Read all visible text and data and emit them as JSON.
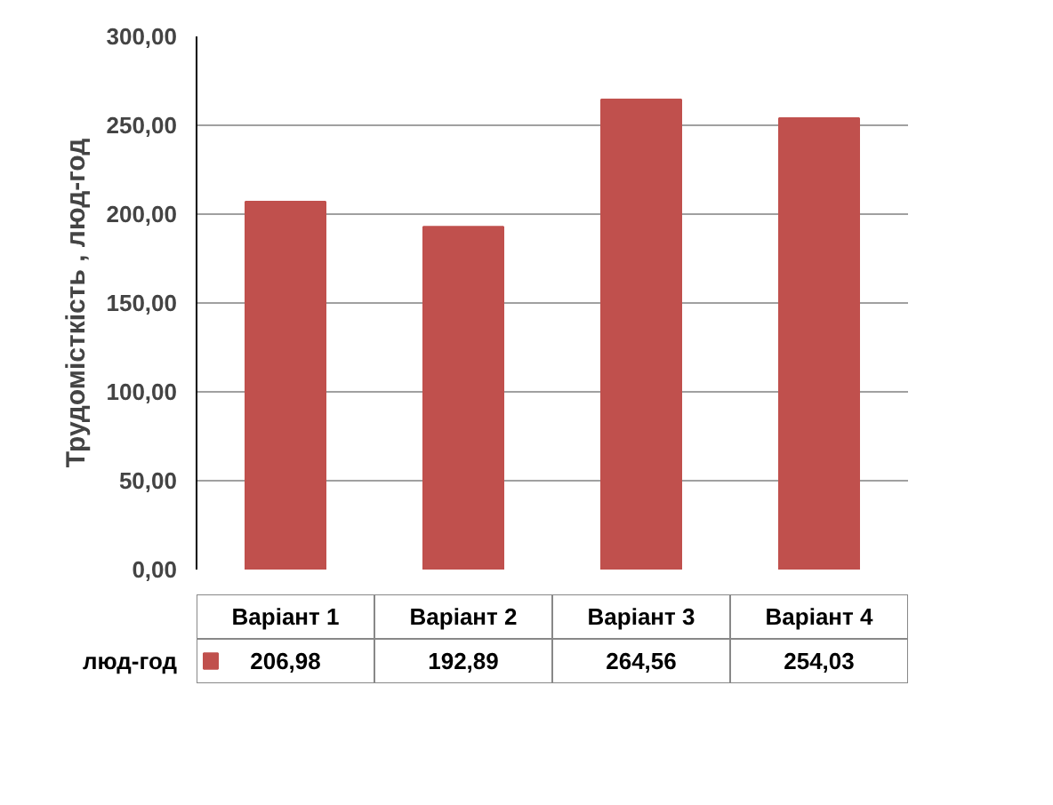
{
  "chart_data": {
    "type": "bar",
    "ylabel": "Трудомісткість , люд-год",
    "categories": [
      "Варіант 1",
      "Варіант 2",
      "Варіант 3",
      "Варіант 4"
    ],
    "series": [
      {
        "name": "люд-год",
        "color": "#c0504d",
        "values": [
          206.98,
          192.89,
          264.56,
          254.03
        ],
        "value_labels": [
          "206,98",
          "192,89",
          "264,56",
          "254,03"
        ]
      }
    ],
    "ylim": [
      0,
      300
    ],
    "yticks": [
      {
        "value": 0,
        "label": "0,00"
      },
      {
        "value": 50,
        "label": "50,00"
      },
      {
        "value": 100,
        "label": "100,00"
      },
      {
        "value": 150,
        "label": "150,00"
      },
      {
        "value": 200,
        "label": "200,00"
      },
      {
        "value": 250,
        "label": "250,00"
      },
      {
        "value": 300,
        "label": "300,00"
      }
    ],
    "grid": "y",
    "tick_labels": "y"
  }
}
